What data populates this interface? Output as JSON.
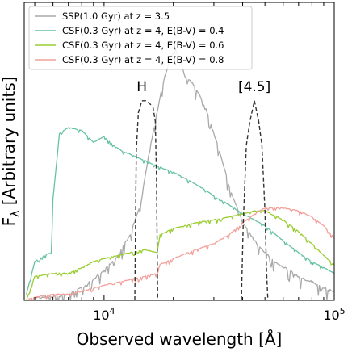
{
  "chart_data": {
    "type": "line",
    "xlabel": "Observed wavelength [Å]",
    "ylabel": "F_λ [Arbitrary units]",
    "xscale": "log",
    "xlim": [
      4500,
      100000
    ],
    "ylim": [
      0,
      1.0
    ],
    "x_ticks": [
      {
        "value": 10000,
        "mantissa": "10",
        "exponent": "4"
      },
      {
        "value": 100000,
        "mantissa": "10",
        "exponent": "5"
      }
    ],
    "legend": {
      "placement": "top-left"
    },
    "series": [
      {
        "name": "SSP(1.0 Gyr) at z = 3.5",
        "color": "#a9a9a9",
        "x": [
          5000,
          6000,
          7000,
          8000,
          9000,
          10000,
          11500,
          13000,
          14500,
          15500,
          16500,
          17500,
          18500,
          19500,
          20500,
          21500,
          22500,
          24000,
          26000,
          28000,
          30000,
          32000,
          35000,
          40000,
          45000,
          50000,
          55000,
          60000,
          70000,
          80000,
          90000,
          100000
        ],
        "y": [
          0.01,
          0.01,
          0.02,
          0.04,
          0.07,
          0.1,
          0.15,
          0.22,
          0.33,
          0.47,
          0.58,
          0.68,
          0.76,
          0.82,
          0.84,
          0.8,
          0.75,
          0.73,
          0.69,
          0.63,
          0.56,
          0.49,
          0.38,
          0.26,
          0.2,
          0.16,
          0.13,
          0.11,
          0.08,
          0.06,
          0.04,
          0.03
        ]
      },
      {
        "name": "CSF(0.3 Gyr) at z = 4, E(B-V) = 0.4",
        "color": "#66c2a5",
        "x": [
          4600,
          5000,
          5500,
          5900,
          6000,
          6400,
          7000,
          8000,
          9000,
          10000,
          11000,
          12000,
          13000,
          14000,
          15000,
          17000,
          20000,
          25000,
          30000,
          35000,
          40000,
          45000,
          50000,
          60000,
          70000,
          80000,
          90000,
          100000
        ],
        "y": [
          0.02,
          0.13,
          0.15,
          0.16,
          0.34,
          0.56,
          0.58,
          0.57,
          0.53,
          0.55,
          0.52,
          0.5,
          0.49,
          0.48,
          0.47,
          0.45,
          0.43,
          0.39,
          0.35,
          0.32,
          0.29,
          0.27,
          0.25,
          0.2,
          0.16,
          0.13,
          0.11,
          0.09
        ]
      },
      {
        "name": "CSF(0.3 Gyr) at z = 4, E(B-V) = 0.6",
        "color": "#9acd32",
        "x": [
          4600,
          5000,
          6000,
          7000,
          8000,
          9000,
          10000,
          11500,
          13000,
          15000,
          17000,
          17500,
          20000,
          25000,
          30000,
          35000,
          40000,
          45000,
          50000,
          60000,
          70000,
          80000,
          90000,
          100000
        ],
        "y": [
          0.0,
          0.08,
          0.09,
          0.09,
          0.11,
          0.13,
          0.14,
          0.15,
          0.16,
          0.17,
          0.16,
          0.22,
          0.24,
          0.26,
          0.27,
          0.28,
          0.29,
          0.3,
          0.3,
          0.27,
          0.23,
          0.19,
          0.15,
          0.12
        ]
      },
      {
        "name": "CSF(0.3 Gyr) at z = 4, E(B-V) = 0.8",
        "color": "#f4a09a",
        "x": [
          4600,
          5000,
          6000,
          7000,
          8000,
          9000,
          10000,
          11500,
          13000,
          15000,
          17000,
          17500,
          20000,
          25000,
          30000,
          35000,
          40000,
          45000,
          50000,
          55000,
          60000,
          70000,
          80000,
          90000,
          100000
        ],
        "y": [
          0.0,
          0.01,
          0.02,
          0.02,
          0.03,
          0.04,
          0.05,
          0.06,
          0.07,
          0.08,
          0.09,
          0.12,
          0.14,
          0.17,
          0.19,
          0.22,
          0.26,
          0.29,
          0.31,
          0.31,
          0.31,
          0.3,
          0.28,
          0.25,
          0.21
        ]
      }
    ],
    "filters": [
      {
        "name": "H",
        "color": "#333333",
        "x": [
          13600,
          13800,
          14100,
          14600,
          15200,
          15800,
          16300,
          16700,
          16900,
          17100
        ],
        "y": [
          0.0,
          0.5,
          0.63,
          0.67,
          0.67,
          0.66,
          0.65,
          0.6,
          0.4,
          0.0
        ]
      },
      {
        "name": "[4.5]",
        "color": "#333333",
        "x": [
          39500,
          40200,
          41500,
          43000,
          45000,
          47000,
          48500,
          50000,
          50800,
          51500
        ],
        "y": [
          0.0,
          0.25,
          0.52,
          0.6,
          0.67,
          0.6,
          0.52,
          0.3,
          0.1,
          0.0
        ]
      }
    ]
  }
}
